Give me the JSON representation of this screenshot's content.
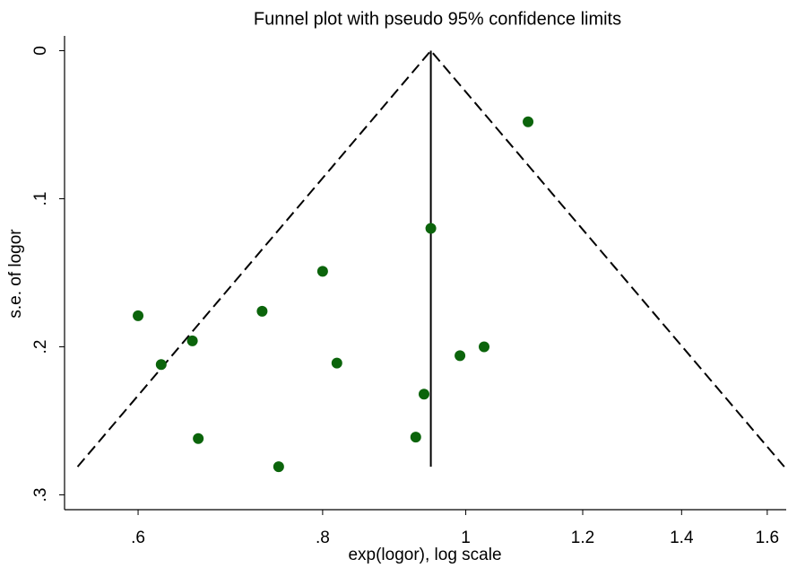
{
  "chart_data": {
    "type": "scatter",
    "title": "Funnel plot with pseudo 95% confidence limits",
    "xlabel": "exp(logor), log scale",
    "ylabel": "s.e. of logor",
    "xscale": "log",
    "yreverse": true,
    "xlim": [
      0.535,
      1.648
    ],
    "ylim": [
      -0.01,
      0.31
    ],
    "xticks": [
      {
        "value": 0.6,
        "label": ".6"
      },
      {
        "value": 0.8,
        "label": ".8"
      },
      1,
      {
        "value": 1.2,
        "label": "1.2"
      },
      {
        "value": 1.4,
        "label": "1.4"
      },
      {
        "value": 1.6,
        "label": "1.6"
      }
    ],
    "yticks": [
      0,
      {
        "value": 0.1,
        "label": ".1"
      },
      {
        "value": 0.2,
        "label": ".2"
      },
      {
        "value": 0.3,
        "label": ".3"
      }
    ],
    "color": "#0b640b",
    "x": [
      1.102,
      0.947,
      0.8,
      0.6,
      0.728,
      0.653,
      0.622,
      0.818,
      0.991,
      1.029,
      0.937,
      0.925,
      0.659,
      0.747
    ],
    "y": [
      0.048,
      0.12,
      0.149,
      0.179,
      0.176,
      0.196,
      0.212,
      0.211,
      0.206,
      0.2,
      0.232,
      0.261,
      0.262,
      0.281
    ],
    "funnel": {
      "x": [
        0.546,
        0.947,
        1.643
      ],
      "y": [
        0.281,
        0,
        0.281
      ]
    },
    "summary_line": {
      "x": [
        0.947,
        0.947
      ],
      "y": [
        0,
        0.281
      ]
    }
  }
}
